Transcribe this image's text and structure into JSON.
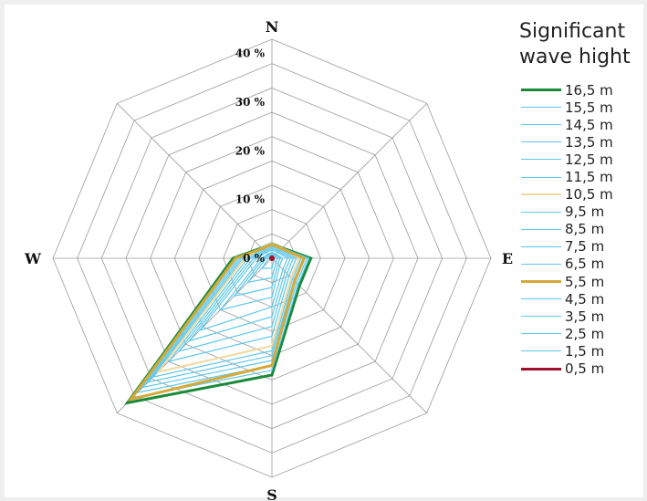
{
  "chart_data": {
    "type": "radar",
    "directions": [
      "N",
      "NE",
      "E",
      "SE",
      "S",
      "SW",
      "W",
      "NW"
    ],
    "direction_labels": {
      "N": "N",
      "E": "E",
      "S": "S",
      "W": "W"
    },
    "radial_tick_labels": [
      "0 %",
      "10 %",
      "20 %",
      "30 %",
      "40 %"
    ],
    "radial_range": [
      0,
      45
    ],
    "grid_rings": 9,
    "legend_title": [
      "Significant",
      "wave hight"
    ],
    "series": [
      {
        "name": "16,5 m",
        "color": "#1a8a3a",
        "values": [
          3,
          3,
          8,
          8,
          24,
          42,
          8,
          3
        ]
      },
      {
        "name": "15,5 m",
        "color": "#5bc8ec",
        "values": [
          3,
          3,
          7.6,
          7.6,
          23,
          40.5,
          7.6,
          3
        ]
      },
      {
        "name": "14,5 m",
        "color": "#5bc8ec",
        "values": [
          3,
          3,
          7.2,
          7.2,
          22,
          39,
          7.2,
          3
        ]
      },
      {
        "name": "13,5 m",
        "color": "#5bc8ec",
        "values": [
          3,
          3,
          6.8,
          6.8,
          21,
          37.5,
          6.8,
          3
        ]
      },
      {
        "name": "12,5 m",
        "color": "#5bc8ec",
        "values": [
          3,
          3,
          6.4,
          6.4,
          20,
          36,
          6.4,
          3
        ]
      },
      {
        "name": "11,5 m",
        "color": "#5bc8ec",
        "values": [
          3,
          3,
          6,
          6,
          19,
          34.5,
          6,
          3
        ]
      },
      {
        "name": "10,5 m",
        "color": "#f0d9a0",
        "values": [
          3,
          3,
          5.6,
          5.6,
          18,
          33,
          5.6,
          3
        ]
      },
      {
        "name": "9,5 m",
        "color": "#5bc8ec",
        "values": [
          2.6,
          2.6,
          5,
          5,
          16,
          30,
          5,
          2.6
        ]
      },
      {
        "name": "8,5 m",
        "color": "#5bc8ec",
        "values": [
          2.3,
          2.3,
          4.4,
          4.4,
          14,
          27,
          4.4,
          2.3
        ]
      },
      {
        "name": "7,5 m",
        "color": "#5bc8ec",
        "values": [
          2,
          2,
          3.8,
          3.8,
          12,
          24,
          3.8,
          2
        ]
      },
      {
        "name": "6,5 m",
        "color": "#5bc8ec",
        "values": [
          1.7,
          1.7,
          3.2,
          3.2,
          10,
          21,
          3.2,
          1.7
        ]
      },
      {
        "name": "5,5 m",
        "color": "#d4a93a",
        "values": [
          2.8,
          2.8,
          6.6,
          6.6,
          22,
          41,
          7.5,
          2.8
        ]
      },
      {
        "name": "4,5 m",
        "color": "#5bc8ec",
        "values": [
          1.2,
          1.2,
          2.2,
          2.2,
          8,
          15,
          2.2,
          1.2
        ]
      },
      {
        "name": "3,5 m",
        "color": "#5bc8ec",
        "values": [
          1,
          1,
          1.7,
          1.7,
          6,
          11,
          1.7,
          1
        ]
      },
      {
        "name": "2,5 m",
        "color": "#5bc8ec",
        "values": [
          0.7,
          0.7,
          1.2,
          1.2,
          4,
          7,
          1.2,
          0.7
        ]
      },
      {
        "name": "1,5 m",
        "color": "#5bc8ec",
        "values": [
          0.4,
          0.4,
          0.6,
          0.6,
          2,
          3,
          0.6,
          0.4
        ]
      },
      {
        "name": "0,5 m",
        "color": "#a0102a",
        "values": [
          0.3,
          0.3,
          0.3,
          0.3,
          0.3,
          0.3,
          0.3,
          0.3
        ]
      }
    ]
  }
}
